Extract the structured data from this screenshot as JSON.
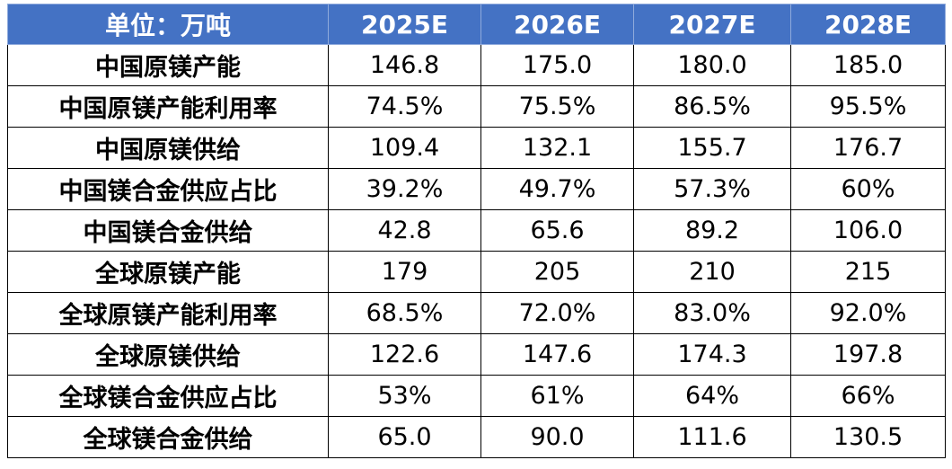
{
  "table": {
    "header": [
      "单位：万吨",
      "2025E",
      "2026E",
      "2027E",
      "2028E"
    ],
    "rows": [
      [
        "中国原镁产能",
        "146.8",
        "175.0",
        "180.0",
        "185.0"
      ],
      [
        "中国原镁产能利用率",
        "74.5%",
        "75.5%",
        "86.5%",
        "95.5%"
      ],
      [
        "中国原镁供给",
        "109.4",
        "132.1",
        "155.7",
        "176.7"
      ],
      [
        "中国镁合金供应占比",
        "39.2%",
        "49.7%",
        "57.3%",
        "60%"
      ],
      [
        "中国镁合金供给",
        "42.8",
        "65.6",
        "89.2",
        "106.0"
      ],
      [
        "全球原镁产能",
        "179",
        "205",
        "210",
        "215"
      ],
      [
        "全球原镁产能利用率",
        "68.5%",
        "72.0%",
        "83.0%",
        "92.0%"
      ],
      [
        "全球原镁供给",
        "122.6",
        "147.6",
        "174.3",
        "197.8"
      ],
      [
        "全球镁合金供应占比",
        "53%",
        "61%",
        "64%",
        "66%"
      ],
      [
        "全球镁合金供给",
        "65.0",
        "90.0",
        "111.6",
        "130.5"
      ]
    ]
  }
}
